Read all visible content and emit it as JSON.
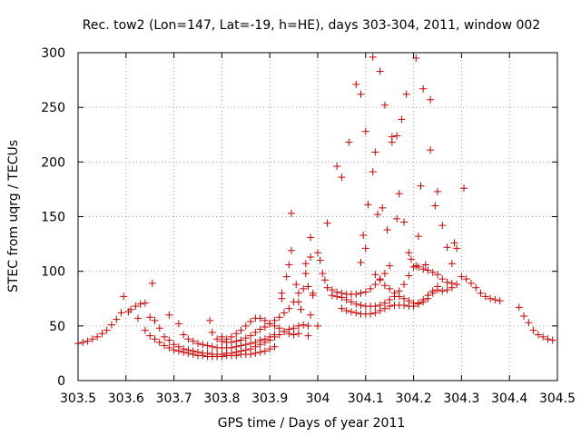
{
  "chart_data": {
    "type": "scatter",
    "title": "Rec. tow2 (Lon=147, Lat=-19, h=HE), days 303-304, 2011, window 002",
    "xlabel": "GPS time / Days of year 2011",
    "ylabel": "STEC from uqrg / TECUs",
    "xlim": [
      303.5,
      304.5
    ],
    "ylim": [
      0,
      300
    ],
    "grid": true,
    "legend": "none",
    "marker": "+",
    "color": "#cc0000",
    "x_ticks": [
      "303.5",
      "303.6",
      "303.7",
      "303.8",
      "303.9",
      "304",
      "304.1",
      "304.2",
      "304.3",
      "304.4",
      "304.5"
    ],
    "y_ticks": [
      "0",
      "50",
      "100",
      "150",
      "200",
      "250",
      "300"
    ],
    "x_tick_values": [
      303.5,
      303.6,
      303.7,
      303.8,
      303.9,
      304.0,
      304.1,
      304.2,
      304.3,
      304.4,
      304.5
    ],
    "y_tick_values": [
      0,
      50,
      100,
      150,
      200,
      250,
      300
    ],
    "points": [
      [
        303.5,
        34
      ],
      [
        303.51,
        35
      ],
      [
        303.52,
        36
      ],
      [
        303.53,
        38
      ],
      [
        303.54,
        40
      ],
      [
        303.55,
        43
      ],
      [
        303.56,
        46
      ],
      [
        303.57,
        51
      ],
      [
        303.58,
        56
      ],
      [
        303.59,
        62
      ],
      [
        303.595,
        77
      ],
      [
        303.605,
        63
      ],
      [
        303.61,
        65
      ],
      [
        303.62,
        68
      ],
      [
        303.63,
        70
      ],
      [
        303.64,
        71
      ],
      [
        303.655,
        89
      ],
      [
        303.65,
        58
      ],
      [
        303.66,
        55
      ],
      [
        303.625,
        57
      ],
      [
        303.64,
        46
      ],
      [
        303.65,
        41
      ],
      [
        303.66,
        38
      ],
      [
        303.67,
        35
      ],
      [
        303.68,
        32
      ],
      [
        303.69,
        30
      ],
      [
        303.7,
        28
      ],
      [
        303.71,
        27
      ],
      [
        303.72,
        26
      ],
      [
        303.73,
        25
      ],
      [
        303.74,
        24
      ],
      [
        303.75,
        23
      ],
      [
        303.76,
        23
      ],
      [
        303.77,
        22
      ],
      [
        303.78,
        22
      ],
      [
        303.79,
        22
      ],
      [
        303.8,
        22
      ],
      [
        303.81,
        23
      ],
      [
        303.82,
        23
      ],
      [
        303.83,
        23
      ],
      [
        303.84,
        24
      ],
      [
        303.85,
        24
      ],
      [
        303.86,
        24
      ],
      [
        303.87,
        25
      ],
      [
        303.88,
        26
      ],
      [
        303.89,
        27
      ],
      [
        303.9,
        29
      ],
      [
        303.91,
        31
      ],
      [
        303.67,
        48
      ],
      [
        303.68,
        40
      ],
      [
        303.69,
        37
      ],
      [
        303.7,
        33
      ],
      [
        303.71,
        31
      ],
      [
        303.72,
        29
      ],
      [
        303.73,
        28
      ],
      [
        303.74,
        27
      ],
      [
        303.75,
        26
      ],
      [
        303.76,
        25
      ],
      [
        303.77,
        25
      ],
      [
        303.78,
        24
      ],
      [
        303.79,
        24
      ],
      [
        303.8,
        24
      ],
      [
        303.81,
        25
      ],
      [
        303.82,
        25
      ],
      [
        303.83,
        26
      ],
      [
        303.84,
        27
      ],
      [
        303.85,
        28
      ],
      [
        303.86,
        29
      ],
      [
        303.87,
        31
      ],
      [
        303.88,
        33
      ],
      [
        303.89,
        35
      ],
      [
        303.9,
        37
      ],
      [
        303.91,
        40
      ],
      [
        303.92,
        42
      ],
      [
        303.93,
        45
      ],
      [
        303.94,
        47
      ],
      [
        303.95,
        48
      ],
      [
        303.96,
        50
      ],
      [
        303.97,
        51
      ],
      [
        303.98,
        50
      ],
      [
        303.69,
        60
      ],
      [
        303.71,
        52
      ],
      [
        303.72,
        42
      ],
      [
        303.73,
        38
      ],
      [
        303.74,
        36
      ],
      [
        303.75,
        34
      ],
      [
        303.76,
        33
      ],
      [
        303.77,
        32
      ],
      [
        303.78,
        31
      ],
      [
        303.79,
        30
      ],
      [
        303.8,
        30
      ],
      [
        303.81,
        30
      ],
      [
        303.82,
        30
      ],
      [
        303.83,
        31
      ],
      [
        303.84,
        32
      ],
      [
        303.85,
        33
      ],
      [
        303.86,
        34
      ],
      [
        303.87,
        35
      ],
      [
        303.88,
        37
      ],
      [
        303.89,
        38
      ],
      [
        303.9,
        40
      ],
      [
        303.91,
        42
      ],
      [
        303.775,
        55
      ],
      [
        303.78,
        44
      ],
      [
        303.79,
        38
      ],
      [
        303.8,
        36
      ],
      [
        303.81,
        35
      ],
      [
        303.82,
        35
      ],
      [
        303.83,
        36
      ],
      [
        303.84,
        37
      ],
      [
        303.85,
        39
      ],
      [
        303.86,
        41
      ],
      [
        303.87,
        44
      ],
      [
        303.88,
        47
      ],
      [
        303.89,
        49
      ],
      [
        303.9,
        52
      ],
      [
        303.91,
        55
      ],
      [
        303.92,
        58
      ],
      [
        303.93,
        62
      ],
      [
        303.94,
        66
      ],
      [
        303.95,
        72
      ],
      [
        303.96,
        80
      ],
      [
        303.97,
        84
      ],
      [
        303.98,
        86
      ],
      [
        303.8,
        40
      ],
      [
        303.81,
        38
      ],
      [
        303.82,
        40
      ],
      [
        303.83,
        43
      ],
      [
        303.84,
        46
      ],
      [
        303.85,
        50
      ],
      [
        303.86,
        54
      ],
      [
        303.87,
        57
      ],
      [
        303.88,
        57
      ],
      [
        303.89,
        55
      ],
      [
        303.9,
        52
      ],
      [
        303.91,
        50
      ],
      [
        303.92,
        48
      ],
      [
        303.93,
        45
      ],
      [
        303.94,
        43
      ],
      [
        303.95,
        42
      ],
      [
        303.925,
        75
      ],
      [
        303.925,
        80
      ],
      [
        303.935,
        95
      ],
      [
        303.94,
        106
      ],
      [
        303.945,
        119
      ],
      [
        303.945,
        153
      ],
      [
        303.955,
        88
      ],
      [
        303.96,
        72
      ],
      [
        303.965,
        65
      ],
      [
        303.975,
        107
      ],
      [
        303.975,
        98
      ],
      [
        303.985,
        113
      ],
      [
        303.985,
        131
      ],
      [
        303.99,
        80
      ],
      [
        303.99,
        78
      ],
      [
        303.985,
        60
      ],
      [
        303.98,
        41
      ],
      [
        303.96,
        43
      ],
      [
        304.0,
        50
      ],
      [
        304.0,
        117
      ],
      [
        304.005,
        110
      ],
      [
        304.01,
        98
      ],
      [
        304.015,
        92
      ],
      [
        304.02,
        85
      ],
      [
        304.03,
        83
      ],
      [
        304.04,
        81
      ],
      [
        304.05,
        80
      ],
      [
        304.06,
        79
      ],
      [
        304.07,
        79
      ],
      [
        304.08,
        79
      ],
      [
        304.09,
        80
      ],
      [
        304.1,
        81
      ],
      [
        304.11,
        84
      ],
      [
        304.12,
        88
      ],
      [
        304.13,
        93
      ],
      [
        304.14,
        98
      ],
      [
        304.15,
        105
      ],
      [
        304.02,
        144
      ],
      [
        304.04,
        196
      ],
      [
        304.05,
        186
      ],
      [
        304.065,
        218
      ],
      [
        304.08,
        271
      ],
      [
        304.09,
        262
      ],
      [
        304.1,
        228
      ],
      [
        304.115,
        296
      ],
      [
        304.13,
        283
      ],
      [
        304.14,
        252
      ],
      [
        304.155,
        223
      ],
      [
        304.165,
        224
      ],
      [
        304.175,
        239
      ],
      [
        304.185,
        262
      ],
      [
        304.205,
        295
      ],
      [
        304.22,
        267
      ],
      [
        304.235,
        257
      ],
      [
        304.05,
        66
      ],
      [
        304.06,
        64
      ],
      [
        304.07,
        63
      ],
      [
        304.08,
        62
      ],
      [
        304.09,
        61
      ],
      [
        304.1,
        61
      ],
      [
        304.11,
        61
      ],
      [
        304.12,
        62
      ],
      [
        304.13,
        64
      ],
      [
        304.14,
        66
      ],
      [
        304.15,
        68
      ],
      [
        304.16,
        69
      ],
      [
        304.17,
        69
      ],
      [
        304.18,
        69
      ],
      [
        304.19,
        68
      ],
      [
        304.2,
        68
      ],
      [
        304.21,
        70
      ],
      [
        304.22,
        74
      ],
      [
        304.23,
        78
      ],
      [
        304.24,
        82
      ],
      [
        304.25,
        83
      ],
      [
        304.26,
        82
      ],
      [
        304.27,
        83
      ],
      [
        304.28,
        85
      ],
      [
        304.29,
        88
      ],
      [
        304.03,
        78
      ],
      [
        304.04,
        77
      ],
      [
        304.05,
        76
      ],
      [
        304.06,
        74
      ],
      [
        304.07,
        72
      ],
      [
        304.08,
        70
      ],
      [
        304.09,
        69
      ],
      [
        304.1,
        68
      ],
      [
        304.11,
        68
      ],
      [
        304.12,
        68
      ],
      [
        304.13,
        69
      ],
      [
        304.14,
        71
      ],
      [
        304.15,
        74
      ],
      [
        304.16,
        77
      ],
      [
        304.17,
        82
      ],
      [
        304.18,
        88
      ],
      [
        304.19,
        96
      ],
      [
        304.2,
        104
      ],
      [
        304.21,
        104
      ],
      [
        304.22,
        102
      ],
      [
        304.23,
        101
      ],
      [
        304.24,
        99
      ],
      [
        304.25,
        97
      ],
      [
        304.26,
        93
      ],
      [
        304.27,
        90
      ],
      [
        304.28,
        89
      ],
      [
        304.095,
        133
      ],
      [
        304.1,
        121
      ],
      [
        304.105,
        161
      ],
      [
        304.115,
        191
      ],
      [
        304.12,
        209
      ],
      [
        304.125,
        152
      ],
      [
        304.135,
        158
      ],
      [
        304.145,
        138
      ],
      [
        304.155,
        218
      ],
      [
        304.165,
        148
      ],
      [
        304.17,
        171
      ],
      [
        304.18,
        145
      ],
      [
        304.19,
        117
      ],
      [
        304.195,
        111
      ],
      [
        304.205,
        105
      ],
      [
        304.21,
        132
      ],
      [
        304.215,
        178
      ],
      [
        304.225,
        106
      ],
      [
        304.235,
        211
      ],
      [
        304.245,
        160
      ],
      [
        304.25,
        173
      ],
      [
        304.26,
        142
      ],
      [
        304.27,
        122
      ],
      [
        304.28,
        107
      ],
      [
        304.285,
        126
      ],
      [
        304.29,
        121
      ],
      [
        304.3,
        95
      ],
      [
        304.305,
        176
      ],
      [
        304.31,
        93
      ],
      [
        304.32,
        89
      ],
      [
        304.33,
        85
      ],
      [
        304.34,
        80
      ],
      [
        304.35,
        77
      ],
      [
        304.36,
        75
      ],
      [
        304.37,
        74
      ],
      [
        304.38,
        73
      ],
      [
        304.42,
        67
      ],
      [
        304.43,
        59
      ],
      [
        304.44,
        53
      ],
      [
        304.45,
        46
      ],
      [
        304.46,
        42
      ],
      [
        304.47,
        40
      ],
      [
        304.48,
        38
      ],
      [
        304.49,
        37
      ],
      [
        304.09,
        108
      ],
      [
        304.12,
        97
      ],
      [
        304.13,
        92
      ],
      [
        304.14,
        87
      ],
      [
        304.15,
        84
      ],
      [
        304.16,
        80
      ],
      [
        304.17,
        77
      ],
      [
        304.18,
        75
      ],
      [
        304.19,
        73
      ],
      [
        304.2,
        71
      ],
      [
        304.21,
        71
      ],
      [
        304.22,
        72
      ],
      [
        304.23,
        75
      ],
      [
        304.24,
        80
      ],
      [
        304.25,
        86
      ]
    ]
  }
}
